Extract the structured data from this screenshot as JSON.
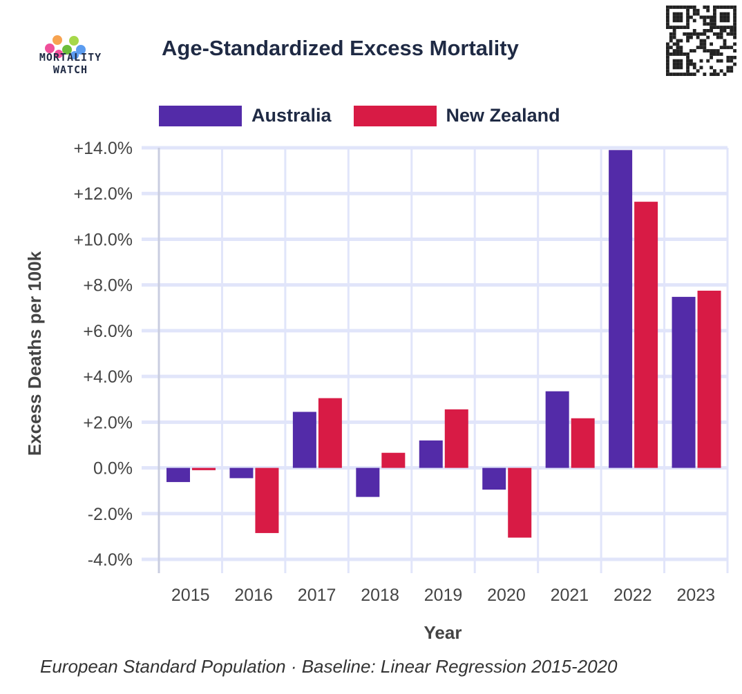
{
  "logo": {
    "line1": "MORTALITY",
    "line2": "WATCH"
  },
  "footer": "European Standard Population · Baseline: Linear Regression 2015-2020",
  "colors": {
    "Australia": "#532ba8",
    "New Zealand": "#d81b45",
    "grid": "#e1e5fa",
    "axis": "#c9cde0"
  },
  "chart_data": {
    "type": "bar",
    "title": "Age-Standardized Excess Mortality",
    "xlabel": "Year",
    "ylabel": "Excess Deaths per 100k",
    "categories": [
      "2015",
      "2016",
      "2017",
      "2018",
      "2019",
      "2020",
      "2021",
      "2022",
      "2023"
    ],
    "series": [
      {
        "name": "Australia",
        "values": [
          -0.62,
          -0.45,
          2.45,
          -1.27,
          1.2,
          -0.95,
          3.35,
          13.9,
          7.48
        ]
      },
      {
        "name": "New Zealand",
        "values": [
          -0.1,
          -2.85,
          3.05,
          0.66,
          2.56,
          -3.05,
          2.17,
          11.64,
          7.75
        ]
      }
    ],
    "ylim": [
      -4,
      14
    ],
    "yticks": [
      "+14.0%",
      "+12.0%",
      "+10.0%",
      "+8.0%",
      "+6.0%",
      "+4.0%",
      "+2.0%",
      "0.0%",
      "-2.0%",
      "-4.0%"
    ],
    "grid": true,
    "legend": "top"
  }
}
